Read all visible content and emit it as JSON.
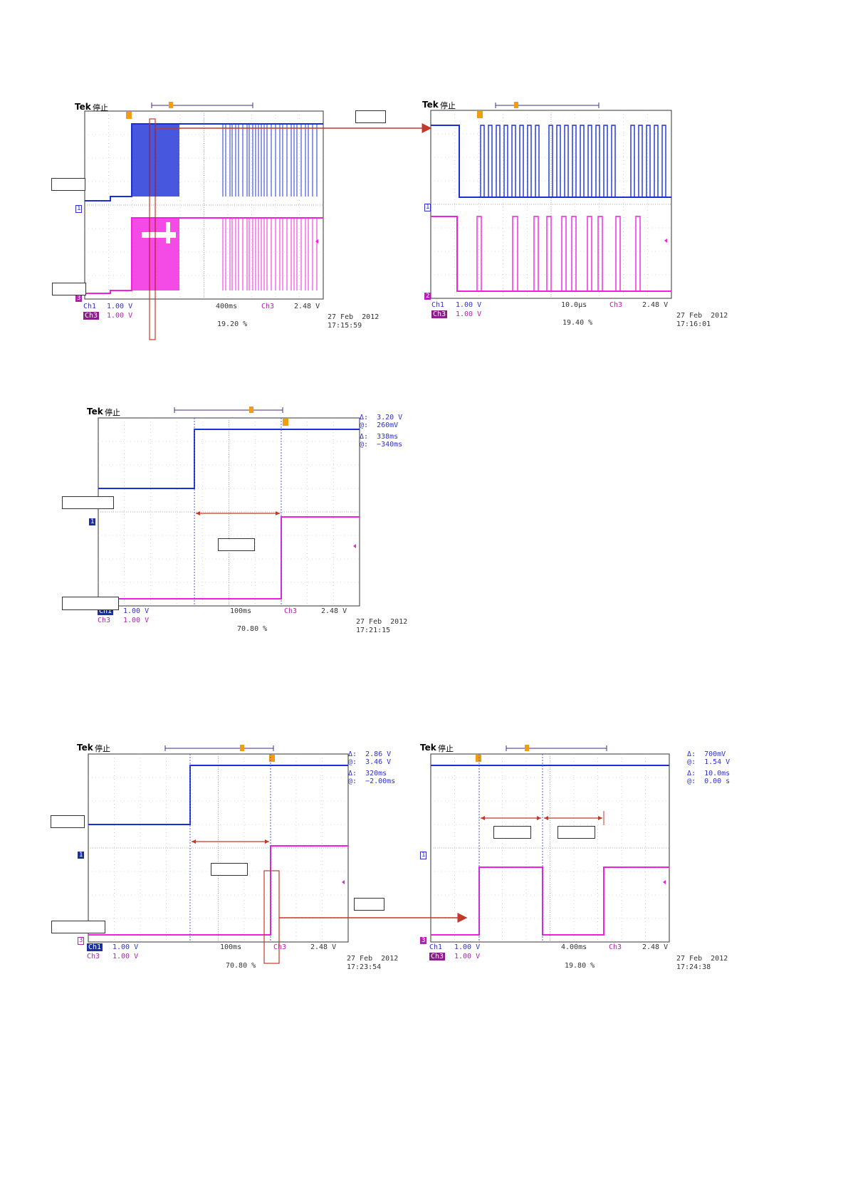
{
  "scopes": [
    {
      "id": "s1",
      "brand": "Tek",
      "status": "停止",
      "ch1": {
        "label": "Ch1",
        "volts": "1.00 V"
      },
      "ch3": {
        "label": "Ch3",
        "volts": "1.00 V"
      },
      "timebase": "400ms",
      "trigger": {
        "source": "Ch3",
        "level": "2.48 V"
      },
      "position": "19.20 %",
      "date": "27 Feb  2012",
      "time": "17:15:59",
      "ch_markers": [
        "1",
        "3"
      ]
    },
    {
      "id": "s2",
      "brand": "Tek",
      "status": "停止",
      "ch1": {
        "label": "Ch1",
        "volts": "1.00 V"
      },
      "ch3": {
        "label": "Ch3",
        "volts": "1.00 V"
      },
      "timebase": "10.0µs",
      "trigger": {
        "source": "Ch3",
        "level": "2.48 V"
      },
      "position": "19.40 %",
      "date": "27 Feb  2012",
      "time": "17:16:01",
      "ch_markers": [
        "1",
        "2"
      ]
    },
    {
      "id": "s3",
      "brand": "Tek",
      "status": "停止",
      "ch1": {
        "label": "Ch1",
        "volts": "1.00 V"
      },
      "ch3": {
        "label": "Ch3",
        "volts": "1.00 V"
      },
      "timebase": "100ms",
      "trigger": {
        "source": "Ch3",
        "level": "2.48 V"
      },
      "position": "70.80 %",
      "date": "27 Feb  2012",
      "time": "17:21:15",
      "ch_markers": [
        "1",
        "3"
      ],
      "cursors": [
        {
          "sym": "Δ:",
          "val": "3.20 V"
        },
        {
          "sym": "@:",
          "val": "260mV"
        },
        {
          "sym": "Δ:",
          "val": "338ms"
        },
        {
          "sym": "@:",
          "val": "−340ms"
        }
      ]
    },
    {
      "id": "s4",
      "brand": "Tek",
      "status": "停止",
      "ch1": {
        "label": "Ch1",
        "volts": "1.00 V"
      },
      "ch3": {
        "label": "Ch3",
        "volts": "1.00 V"
      },
      "timebase": "100ms",
      "trigger": {
        "source": "Ch3",
        "level": "2.48 V"
      },
      "position": "70.80 %",
      "date": "27 Feb  2012",
      "time": "17:23:54",
      "ch_markers": [
        "1",
        "3"
      ],
      "cursors": [
        {
          "sym": "Δ:",
          "val": "2.86 V"
        },
        {
          "sym": "@:",
          "val": "3.46 V"
        },
        {
          "sym": "Δ:",
          "val": "320ms"
        },
        {
          "sym": "@:",
          "val": "−2.00ms"
        }
      ]
    },
    {
      "id": "s5",
      "brand": "Tek",
      "status": "停止",
      "ch1": {
        "label": "Ch1",
        "volts": "1.00 V"
      },
      "ch3": {
        "label": "Ch3",
        "volts": "1.00 V"
      },
      "timebase": "4.00ms",
      "trigger": {
        "source": "Ch3",
        "level": "2.48 V"
      },
      "position": "19.80 %",
      "date": "27 Feb  2012",
      "time": "17:24:38",
      "ch_markers": [
        "1",
        "3"
      ],
      "cursors": [
        {
          "sym": "Δ:",
          "val": "700mV"
        },
        {
          "sym": "@:",
          "val": "1.54 V"
        },
        {
          "sym": "Δ:",
          "val": "10.0ms"
        },
        {
          "sym": "@:",
          "val": "0.00 s"
        }
      ]
    }
  ],
  "colors": {
    "ch1": "#1a2fd6",
    "ch3": "#f21ee0",
    "annotation": "#c0392b",
    "grid": "#b8b8b8",
    "frame": "#555555",
    "readout_text": "#3030c8"
  }
}
